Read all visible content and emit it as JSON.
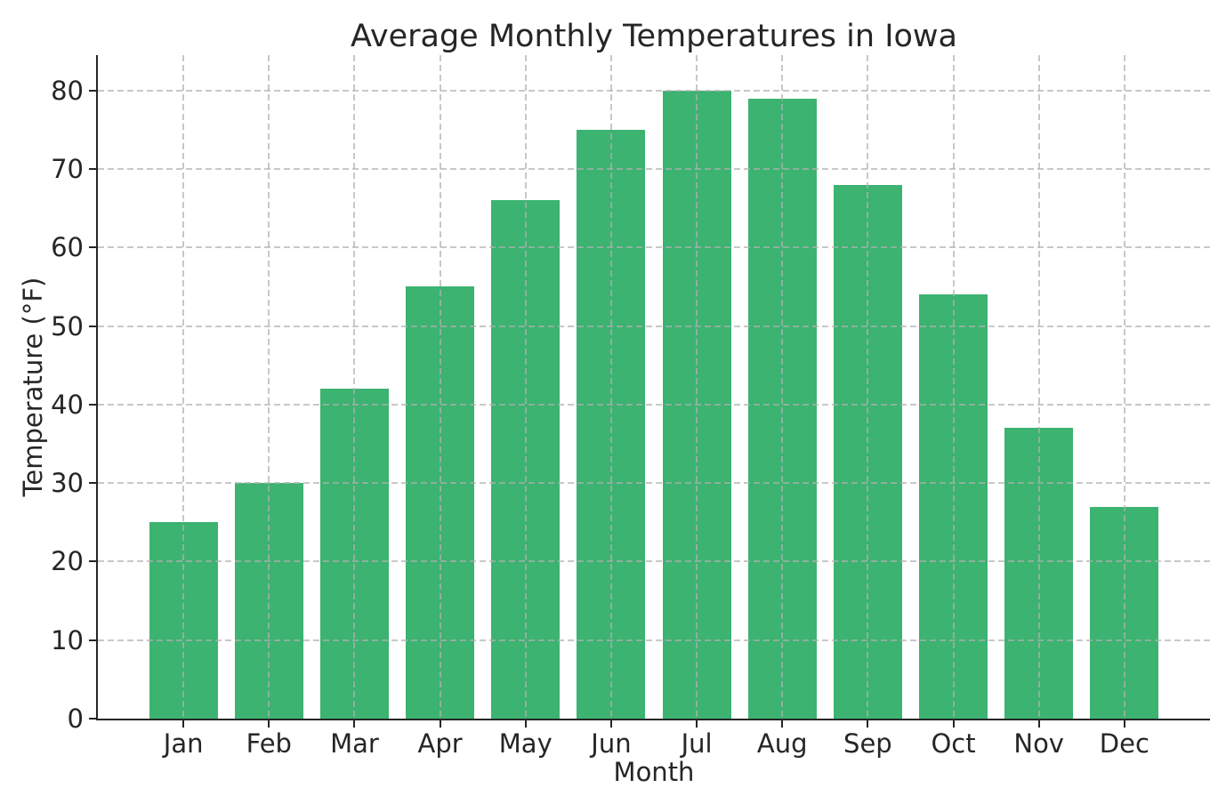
{
  "chart_data": {
    "type": "bar",
    "title": "Average Monthly Temperatures in Iowa",
    "xlabel": "Month",
    "ylabel": "Temperature (°F)",
    "categories": [
      "Jan",
      "Feb",
      "Mar",
      "Apr",
      "May",
      "Jun",
      "Jul",
      "Aug",
      "Sep",
      "Oct",
      "Nov",
      "Dec"
    ],
    "values": [
      25,
      30,
      42,
      55,
      66,
      75,
      80,
      79,
      68,
      54,
      37,
      27
    ],
    "yticks": [
      0,
      10,
      20,
      30,
      40,
      50,
      60,
      70,
      80
    ],
    "ylim": [
      0,
      84.5
    ],
    "bar_width_fraction": 0.8,
    "legend": "none",
    "grid": {
      "visible": true,
      "style": "dashed",
      "axes": "both",
      "drawn_over_bars": true
    },
    "colors": {
      "bar": "#3cb371",
      "grid": "#b0b0b0",
      "axis": "#262626",
      "text": "#262626",
      "background": "#ffffff"
    }
  }
}
